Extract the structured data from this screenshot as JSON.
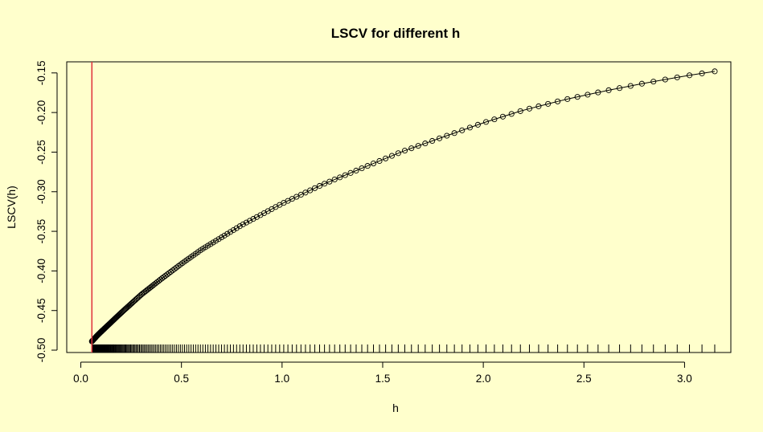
{
  "chart_data": {
    "type": "scatter",
    "title": "LSCV for different h",
    "xlabel": "h",
    "ylabel": "LSCV(h)",
    "xlim": [
      -0.07,
      3.23
    ],
    "ylim": [
      -0.503,
      -0.136
    ],
    "x_ticks": [
      0.0,
      0.5,
      1.0,
      1.5,
      2.0,
      2.5,
      3.0
    ],
    "x_tick_labels": [
      "0.0",
      "0.5",
      "1.0",
      "1.5",
      "2.0",
      "2.5",
      "3.0"
    ],
    "y_ticks": [
      -0.5,
      -0.45,
      -0.4,
      -0.35,
      -0.3,
      -0.25,
      -0.2,
      -0.15
    ],
    "y_tick_labels": [
      "-0.50",
      "-0.45",
      "-0.40",
      "-0.35",
      "-0.30",
      "-0.25",
      "-0.20",
      "-0.15"
    ],
    "grid": false,
    "legend": "none",
    "series_style": "line with open circle markers",
    "line_color": "#000000",
    "marker_color": "#000000",
    "rug": "tick at each h value along the bottom of the plot",
    "vline": {
      "x": 0.055,
      "color": "#E0303A"
    },
    "points": [
      {
        "x": 0.055,
        "y": -0.489
      },
      {
        "x": 0.08,
        "y": -0.482
      },
      {
        "x": 0.1,
        "y": -0.477
      },
      {
        "x": 0.15,
        "y": -0.465
      },
      {
        "x": 0.2,
        "y": -0.453
      },
      {
        "x": 0.3,
        "y": -0.43
      },
      {
        "x": 0.4,
        "y": -0.41
      },
      {
        "x": 0.5,
        "y": -0.391
      },
      {
        "x": 0.6,
        "y": -0.373
      },
      {
        "x": 0.8,
        "y": -0.342
      },
      {
        "x": 1.0,
        "y": -0.315
      },
      {
        "x": 1.2,
        "y": -0.291
      },
      {
        "x": 1.4,
        "y": -0.27
      },
      {
        "x": 1.6,
        "y": -0.249
      },
      {
        "x": 1.8,
        "y": -0.231
      },
      {
        "x": 2.0,
        "y": -0.213
      },
      {
        "x": 2.2,
        "y": -0.197
      },
      {
        "x": 2.4,
        "y": -0.184
      },
      {
        "x": 2.6,
        "y": -0.173
      },
      {
        "x": 2.8,
        "y": -0.163
      },
      {
        "x": 3.0,
        "y": -0.154
      },
      {
        "x": 3.15,
        "y": -0.148
      }
    ]
  }
}
